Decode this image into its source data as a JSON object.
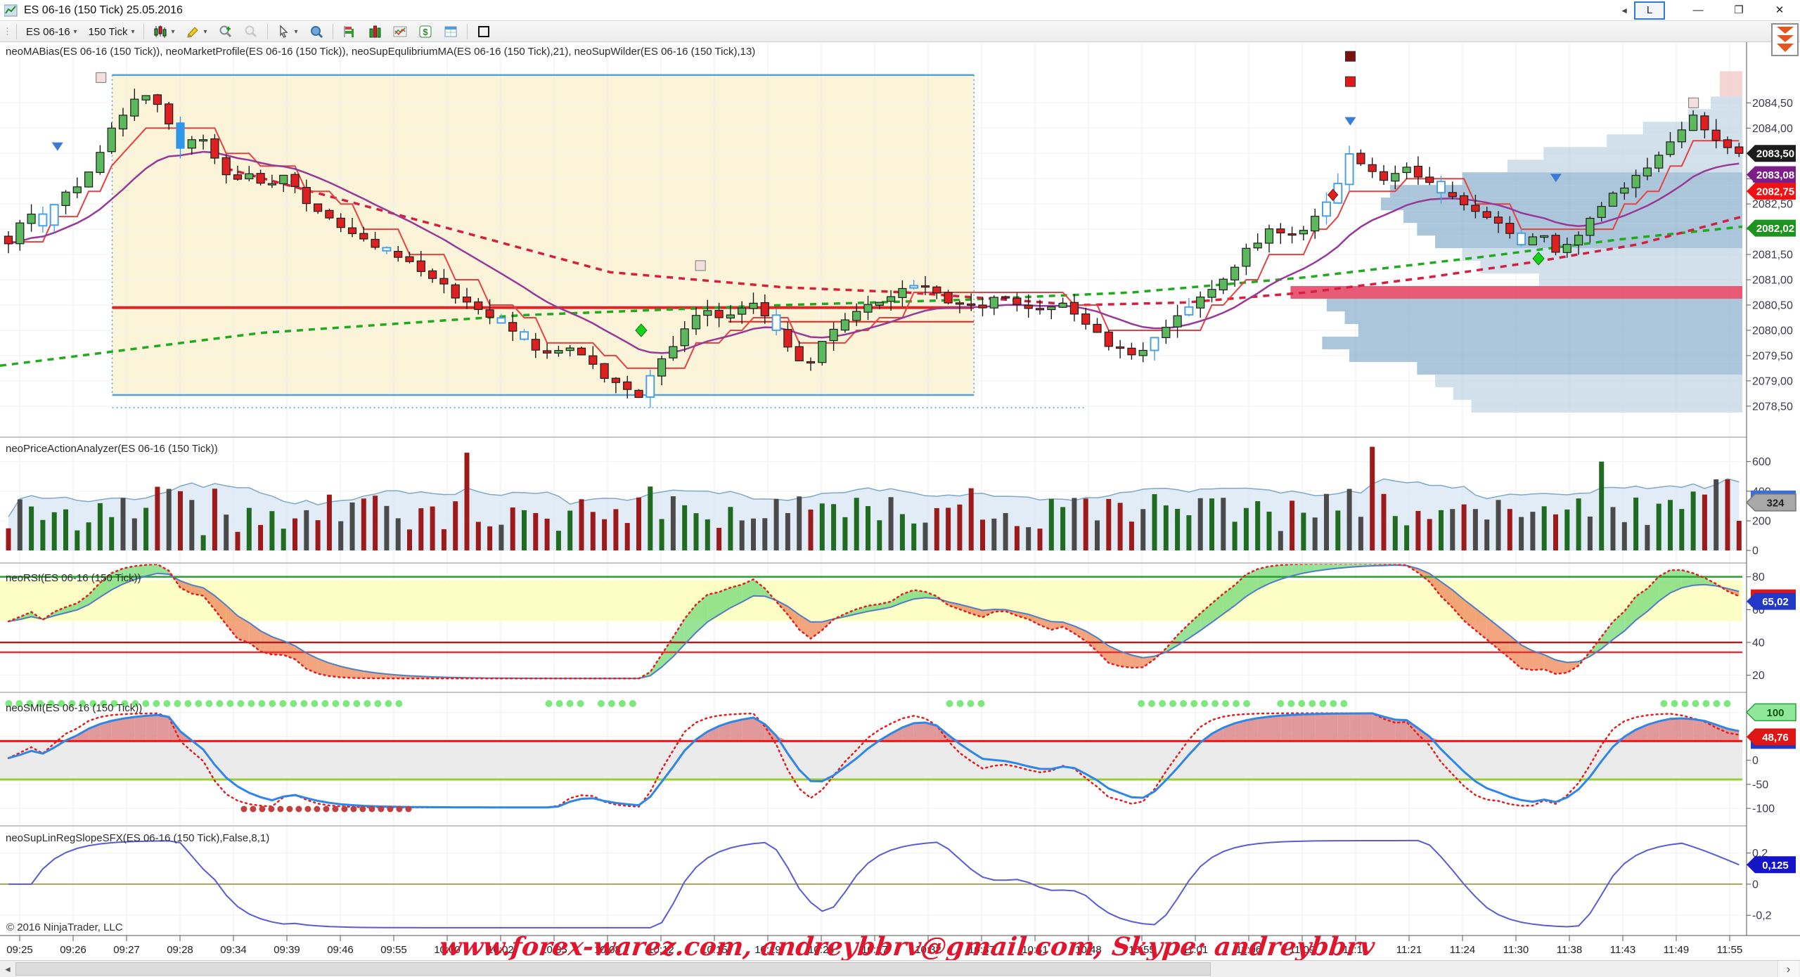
{
  "window": {
    "title": "ES 06-16 (150 Tick)  25.05.2016",
    "controls": {
      "back": "◄",
      "link": "L",
      "minimize": "—",
      "restore": "❐",
      "close": "✕"
    }
  },
  "toolbar": {
    "caret": "▾",
    "grip": "⋮",
    "items": [
      {
        "name": "instrument-selector",
        "label": "ES 06-16",
        "dropdown": true
      },
      {
        "name": "interval-selector",
        "label": "150 Tick",
        "dropdown": true
      },
      {
        "name": "sep1",
        "sep": true
      },
      {
        "name": "chart-style-button",
        "icon": "candles",
        "dropdown": true
      },
      {
        "name": "drawing-tools-button",
        "icon": "pencil",
        "dropdown": true
      },
      {
        "name": "zoom-in-button",
        "icon": "zoom-in"
      },
      {
        "name": "zoom-out-button",
        "icon": "zoom-out",
        "disabled": true
      },
      {
        "name": "sep2",
        "sep": true
      },
      {
        "name": "cursor-button",
        "icon": "cursor",
        "dropdown": true
      },
      {
        "name": "data-box-button",
        "icon": "magnifier-blue"
      },
      {
        "name": "sep3",
        "sep": true
      },
      {
        "name": "order-entry-button",
        "icon": "hbars"
      },
      {
        "name": "indicators-button",
        "icon": "vbars"
      },
      {
        "name": "chart-trader-button",
        "icon": "minichart"
      },
      {
        "name": "account-button",
        "icon": "dollar"
      },
      {
        "name": "data-grid-button",
        "icon": "grid"
      },
      {
        "name": "sep4",
        "sep": true
      },
      {
        "name": "region-highlight-button",
        "icon": "square"
      }
    ]
  },
  "panels": {
    "price_label": "neoMABias(ES 06-16 (150 Tick)), neoMarketProfile(ES 06-16 (150 Tick)), neoSupEqulibriumMA(ES 06-16 (150 Tick),21), neoSupWilder(ES 06-16 (150 Tick),13)",
    "volume_label": "neoPriceActionAnalyzer(ES 06-16 (150 Tick))",
    "rsi_label": "neoRSI(ES 06-16 (150 Tick))",
    "smi_label": "neoSMI(ES 06-16 (150 Tick))",
    "linreg_label": "neoSupLinRegSlopeSFX(ES 06-16 (150 Tick),False,8,1)"
  },
  "footer": {
    "copyright": "© 2016 NinjaTrader, LLC",
    "watermark": "www.forex-warez.com, andreybbrv@gmail.com, Skype: andreybbrv",
    "scroll_left": "◄",
    "scroll_right": "›"
  },
  "chart_data": {
    "type": "candlestick-multi-panel",
    "time_ticks": [
      "09:25",
      "09:26",
      "09:27",
      "09:28",
      "09:34",
      "09:39",
      "09:46",
      "09:55",
      "10:00",
      "10:02",
      "10:05",
      "10:08",
      "10:12",
      "10:15",
      "10:19",
      "10:24",
      "10:27",
      "10:32",
      "10:37",
      "10:41",
      "10:48",
      "10:55",
      "11:01",
      "11:06",
      "11:09",
      "11:14",
      "11:21",
      "11:24",
      "11:30",
      "11:38",
      "11:43",
      "11:49",
      "11:55"
    ],
    "price_panel": {
      "ylim": [
        2077.9,
        2085.7
      ],
      "yticks": [
        {
          "v": 2084.5,
          "label": "2084,50"
        },
        {
          "v": 2084.0,
          "label": "2084,00"
        },
        {
          "v": 2083.5,
          "label": "2083,50"
        },
        {
          "v": 2083.0,
          "label": "2083,00"
        },
        {
          "v": 2082.5,
          "label": "2082,50"
        },
        {
          "v": 2082.0,
          "label": "2082,00"
        },
        {
          "v": 2081.5,
          "label": "2081,50"
        },
        {
          "v": 2081.0,
          "label": "2081,00"
        },
        {
          "v": 2080.5,
          "label": "2080,50"
        },
        {
          "v": 2080.0,
          "label": "2080,00"
        },
        {
          "v": 2079.5,
          "label": "2079,50"
        },
        {
          "v": 2079.0,
          "label": "2079,00"
        },
        {
          "v": 2078.5,
          "label": "2078,50"
        }
      ],
      "last_price": 2083.5,
      "tags": [
        {
          "value": "2083,50",
          "price": 2083.5,
          "bg": "#1c1c1c",
          "fg": "#fff"
        },
        {
          "value": "2083,08",
          "price": 2083.08,
          "bg": "#7c1d88",
          "fg": "#fff"
        },
        {
          "value": "2082,75",
          "price": 2082.75,
          "bg": "#ee1212",
          "fg": "#fff"
        },
        {
          "value": "2082,02",
          "price": 2082.02,
          "bg": "#1e9420",
          "fg": "#fff"
        }
      ],
      "price_path": [
        [
          0,
          2081.7
        ],
        [
          0.01,
          2082.4
        ],
        [
          0.02,
          2082.1
        ],
        [
          0.03,
          2082.7
        ],
        [
          0.04,
          2082.9
        ],
        [
          0.05,
          2083.3
        ],
        [
          0.06,
          2084.0
        ],
        [
          0.07,
          2084.45
        ],
        [
          0.08,
          2084.7
        ],
        [
          0.09,
          2084.3
        ],
        [
          0.1,
          2083.6
        ],
        [
          0.11,
          2083.9
        ],
        [
          0.12,
          2083.3
        ],
        [
          0.13,
          2083.0
        ],
        [
          0.14,
          2083.15
        ],
        [
          0.15,
          2082.8
        ],
        [
          0.16,
          2083.05
        ],
        [
          0.17,
          2082.6
        ],
        [
          0.19,
          2082.1
        ],
        [
          0.21,
          2081.7
        ],
        [
          0.23,
          2081.35
        ],
        [
          0.25,
          2080.9
        ],
        [
          0.27,
          2080.4
        ],
        [
          0.29,
          2080.0
        ],
        [
          0.31,
          2079.5
        ],
        [
          0.325,
          2079.7
        ],
        [
          0.34,
          2079.2
        ],
        [
          0.355,
          2078.85
        ],
        [
          0.365,
          2078.7
        ],
        [
          0.375,
          2079.35
        ],
        [
          0.39,
          2079.95
        ],
        [
          0.4,
          2080.45
        ],
        [
          0.415,
          2080.2
        ],
        [
          0.43,
          2080.6
        ],
        [
          0.445,
          2079.9
        ],
        [
          0.46,
          2079.25
        ],
        [
          0.475,
          2080.0
        ],
        [
          0.49,
          2080.4
        ],
        [
          0.51,
          2080.7
        ],
        [
          0.525,
          2080.95
        ],
        [
          0.54,
          2080.6
        ],
        [
          0.56,
          2080.45
        ],
        [
          0.575,
          2080.7
        ],
        [
          0.59,
          2080.4
        ],
        [
          0.61,
          2080.55
        ],
        [
          0.625,
          2080.1
        ],
        [
          0.64,
          2079.6
        ],
        [
          0.655,
          2079.55
        ],
        [
          0.67,
          2080.1
        ],
        [
          0.685,
          2080.5
        ],
        [
          0.7,
          2080.9
        ],
        [
          0.715,
          2081.6
        ],
        [
          0.73,
          2082.0
        ],
        [
          0.745,
          2081.85
        ],
        [
          0.755,
          2082.2
        ],
        [
          0.765,
          2082.7
        ],
        [
          0.775,
          2083.5
        ],
        [
          0.785,
          2083.2
        ],
        [
          0.795,
          2082.95
        ],
        [
          0.805,
          2083.25
        ],
        [
          0.815,
          2083.0
        ],
        [
          0.83,
          2082.7
        ],
        [
          0.845,
          2082.45
        ],
        [
          0.86,
          2082.1
        ],
        [
          0.875,
          2081.65
        ],
        [
          0.885,
          2081.95
        ],
        [
          0.895,
          2081.55
        ],
        [
          0.905,
          2081.85
        ],
        [
          0.915,
          2082.2
        ],
        [
          0.925,
          2082.6
        ],
        [
          0.935,
          2082.9
        ],
        [
          0.945,
          2083.2
        ],
        [
          0.955,
          2083.5
        ],
        [
          0.965,
          2083.9
        ],
        [
          0.975,
          2084.25
        ],
        [
          0.985,
          2083.8
        ],
        [
          0.995,
          2083.6
        ],
        [
          1,
          2083.5
        ]
      ],
      "green_dash_ma": [
        [
          0,
          2079.3
        ],
        [
          0.15,
          2079.95
        ],
        [
          0.3,
          2080.3
        ],
        [
          0.45,
          2080.5
        ],
        [
          0.55,
          2080.6
        ],
        [
          0.65,
          2080.75
        ],
        [
          0.75,
          2081.05
        ],
        [
          0.85,
          2081.45
        ],
        [
          0.93,
          2081.8
        ],
        [
          1,
          2082.05
        ]
      ],
      "red_dash_ma": [
        [
          0.13,
          2083.2
        ],
        [
          0.2,
          2082.55
        ],
        [
          0.27,
          2081.9
        ],
        [
          0.35,
          2081.15
        ],
        [
          0.45,
          2080.85
        ],
        [
          0.52,
          2080.75
        ],
        [
          0.58,
          2080.6
        ],
        [
          0.62,
          2080.5
        ],
        [
          0.68,
          2080.55
        ],
        [
          0.75,
          2080.75
        ],
        [
          0.82,
          2081.05
        ],
        [
          0.88,
          2081.35
        ],
        [
          0.94,
          2081.7
        ],
        [
          1,
          2082.25
        ]
      ],
      "region": {
        "x0": 0.0644,
        "x1": 0.559,
        "top": 2085.05,
        "bottom": 2078.72,
        "fill": "#fcf4d9",
        "border": "#57a0d8"
      },
      "dotted_line": {
        "price": 2078.47,
        "x0": 0.0644,
        "x1": 0.622,
        "color": "#4a9fe0"
      },
      "hlines": [
        {
          "price": 2080.45,
          "x0": 0.0644,
          "x1": 0.559,
          "color": "#e02424",
          "w": 4
        },
        {
          "price": 2080.17,
          "x0": 0.418,
          "x1": 0.559,
          "color": "#e02424",
          "w": 2
        }
      ],
      "profile": {
        "max_width_frac": 0.251,
        "colors": {
          "light": "#c3d5e4",
          "mid": "#8fb3cf",
          "red": "#e64965",
          "pink": "#f2c6c6"
        },
        "rows": [
          {
            "p": 2085.0,
            "w": 0.05,
            "c": "pink"
          },
          {
            "p": 2084.75,
            "w": 0.05,
            "c": "pink"
          },
          {
            "p": 2084.5,
            "w": 0.07,
            "c": "light"
          },
          {
            "p": 2084.25,
            "w": 0.12,
            "c": "light"
          },
          {
            "p": 2084.0,
            "w": 0.22,
            "c": "light"
          },
          {
            "p": 2083.75,
            "w": 0.3,
            "c": "light"
          },
          {
            "p": 2083.5,
            "w": 0.44,
            "c": "light"
          },
          {
            "p": 2083.25,
            "w": 0.52,
            "c": "light"
          },
          {
            "p": 2083.0,
            "w": 0.62,
            "c": "mid"
          },
          {
            "p": 2082.75,
            "w": 0.78,
            "c": "mid"
          },
          {
            "p": 2082.5,
            "w": 0.8,
            "c": "mid"
          },
          {
            "p": 2082.25,
            "w": 0.75,
            "c": "mid"
          },
          {
            "p": 2082.0,
            "w": 0.72,
            "c": "mid"
          },
          {
            "p": 2081.75,
            "w": 0.68,
            "c": "mid"
          },
          {
            "p": 2081.5,
            "w": 0.62,
            "c": "light"
          },
          {
            "p": 2081.25,
            "w": 0.58,
            "c": "light"
          },
          {
            "p": 2081.0,
            "w": 0.45,
            "c": "light"
          },
          {
            "p": 2080.75,
            "w": 1.0,
            "c": "red"
          },
          {
            "p": 2080.5,
            "w": 0.92,
            "c": "mid"
          },
          {
            "p": 2080.25,
            "w": 0.88,
            "c": "mid"
          },
          {
            "p": 2080.0,
            "w": 0.85,
            "c": "mid"
          },
          {
            "p": 2079.75,
            "w": 0.93,
            "c": "mid"
          },
          {
            "p": 2079.5,
            "w": 0.87,
            "c": "mid"
          },
          {
            "p": 2079.25,
            "w": 0.72,
            "c": "mid"
          },
          {
            "p": 2079.0,
            "w": 0.68,
            "c": "light"
          },
          {
            "p": 2078.75,
            "w": 0.64,
            "c": "light"
          },
          {
            "p": 2078.5,
            "w": 0.6,
            "c": "light"
          }
        ]
      },
      "markers": {
        "down_triangles": [
          [
            0.033,
            2083.62
          ],
          [
            0.775,
            2084.12
          ],
          [
            0.893,
            2083.0
          ]
        ],
        "squares": [
          {
            "f": 0.775,
            "p": 2085.42,
            "fill": "#7a1212"
          },
          {
            "f": 0.775,
            "p": 2084.92,
            "fill": "#e01818"
          }
        ],
        "pink_squares": [
          [
            0.058,
            2085.0
          ],
          [
            0.402,
            2081.28
          ],
          [
            0.972,
            2084.5
          ]
        ],
        "green_diamonds": [
          [
            0.368,
            2080.0
          ],
          [
            0.883,
            2081.42
          ]
        ],
        "red_diamonds": [
          [
            0.765,
            2082.68
          ]
        ]
      }
    },
    "volume_panel": {
      "ylim": [
        -80,
        760
      ],
      "yticks": [
        {
          "v": 600,
          "label": "600"
        },
        {
          "v": 400,
          "label": "400"
        },
        {
          "v": 200,
          "label": "200"
        },
        {
          "v": 0,
          "label": "0"
        }
      ],
      "tag": {
        "value": "324",
        "bg": "#a8a8a8",
        "fg": "#222"
      },
      "tag_hidden_bg": "#3a6fd8",
      "base_range": [
        100,
        340
      ],
      "spikes": [
        [
          0.085,
          430
        ],
        [
          0.263,
          660
        ],
        [
          0.555,
          420
        ],
        [
          0.79,
          700
        ],
        [
          0.922,
          600
        ],
        [
          0.99,
          480
        ]
      ],
      "colors": {
        "up": "#1f6b1f",
        "down": "#9c1a1a",
        "neutral": "#4a4a4a",
        "area": "#dde9f4",
        "area_line": "#7fa8c9"
      }
    },
    "rsi_panel": {
      "ylim": [
        10,
        88
      ],
      "yticks": [
        {
          "v": 80,
          "label": "80"
        },
        {
          "v": 60,
          "label": "60"
        },
        {
          "v": 40,
          "label": "40"
        },
        {
          "v": 20,
          "label": "20"
        }
      ],
      "band": {
        "from": 53,
        "to": 78,
        "fill": "#fdfdc6"
      },
      "hlines": [
        {
          "v": 80,
          "color": "#2ca02c",
          "w": 2.5
        },
        {
          "v": 40,
          "color": "#a82222",
          "w": 2.5
        },
        {
          "v": 34,
          "color": "#e83030",
          "w": 2.5
        }
      ],
      "tag": {
        "value": "65,02",
        "bg": "#2438c8",
        "fg": "#fff"
      },
      "tag_hidden_bg": "#e01515",
      "last": 65.02,
      "colors": {
        "line": "#4f7ec2",
        "dotted": "#e02020",
        "fill_up": "#7ddc7d",
        "fill_dn": "#ef8f5f"
      }
    },
    "smi_panel": {
      "ylim": [
        -135,
        140
      ],
      "yticks": [
        {
          "v": 100,
          "label": "100"
        },
        {
          "v": 0,
          "label": "0"
        },
        {
          "v": -50,
          "label": "-50"
        },
        {
          "v": -100,
          "label": "-100"
        }
      ],
      "hlines": [
        {
          "v": 40,
          "color": "#ff1010",
          "w": 3
        },
        {
          "v": -40,
          "color": "#9acd32",
          "w": 3
        }
      ],
      "band": {
        "from": -40,
        "to": 40,
        "fill": "#ebebeb"
      },
      "tags": [
        {
          "value": "100",
          "bg": "#8fe89a",
          "fg": "#145214",
          "border": "#2f9e3f"
        },
        {
          "value": "48,76",
          "bg": "#e01515",
          "fg": "#fff"
        }
      ],
      "tag_hidden_bg": "#2438c8",
      "last": 48.76,
      "green_dot_runs": [
        [
          0.005,
          0.23
        ],
        [
          0.315,
          0.335
        ],
        [
          0.345,
          0.365
        ],
        [
          0.545,
          0.565
        ],
        [
          0.655,
          0.72
        ],
        [
          0.735,
          0.775
        ],
        [
          0.955,
          0.995
        ]
      ],
      "red_dot_runs": [
        [
          0.14,
          0.235
        ]
      ],
      "colors": {
        "line": "#2e86e8",
        "dotted": "#e02020",
        "fill_up": "#d98080",
        "fill_dn": "#9fe8a0",
        "green_dot": "#7de87d",
        "red_dot": "#c04040"
      }
    },
    "linreg_panel": {
      "ylim": [
        -0.33,
        0.37
      ],
      "yticks": [
        {
          "v": 0.2,
          "label": "0,2"
        },
        {
          "v": 0,
          "label": "0"
        },
        {
          "v": -0.2,
          "label": "-0,2"
        }
      ],
      "hline": {
        "v": 0,
        "color": "#8a8a30"
      },
      "tag": {
        "value": "0,125",
        "bg": "#1515c8",
        "fg": "#fff"
      },
      "last": 0.125,
      "color": "#5b5bd6"
    }
  }
}
